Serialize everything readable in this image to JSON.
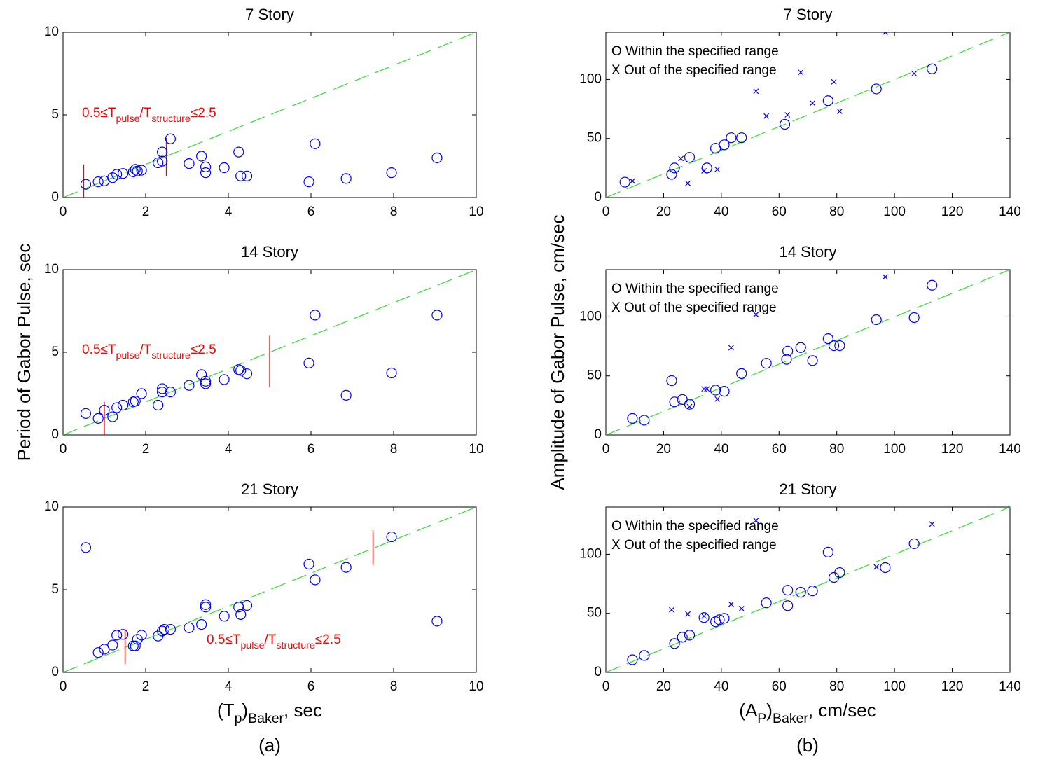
{
  "labels": {
    "ylabel_a": "Period of Gabor Pulse, sec",
    "ylabel_b": "Amplitude of Gabor Pulse, cm/sec",
    "xlabel_a": [
      "(T",
      "p",
      ")",
      "Baker",
      ", sec"
    ],
    "xlabel_b": [
      "(A",
      "P",
      ")",
      "Baker",
      ", cm/sec"
    ],
    "panel_a": "(a)",
    "panel_b": "(b)"
  },
  "chart_data": [
    {
      "type": "scatter",
      "title": "7 Story",
      "xlim": [
        0,
        10
      ],
      "ylim": [
        0,
        10
      ],
      "xticks": [
        0,
        2,
        4,
        6,
        8,
        10
      ],
      "yticks": [
        0,
        5,
        10
      ],
      "grid": false,
      "annotation": [
        "0.5≤T",
        "pulse",
        "/T",
        "structure",
        "≤2.5"
      ],
      "annotation_color": "#ff0000",
      "range_marks": [
        {
          "x": 0.5,
          "y": [
            0,
            2
          ]
        },
        {
          "x": 2.5,
          "y": [
            1.3,
            3.6
          ]
        }
      ],
      "reference_line": {
        "x": [
          0,
          10
        ],
        "values": [
          0,
          10
        ],
        "color": "#33dd33"
      },
      "series": [
        {
          "marker": "o",
          "color": "#0000ff",
          "x": [
            0.55,
            0.85,
            1.0,
            1.2,
            1.3,
            1.45,
            1.7,
            1.75,
            1.8,
            1.9,
            2.3,
            2.4,
            2.4,
            2.6,
            3.05,
            3.35,
            3.45,
            3.45,
            3.9,
            4.25,
            4.3,
            4.45,
            5.95,
            6.1,
            6.85,
            7.95,
            9.05
          ],
          "values": [
            0.8,
            0.95,
            1.0,
            1.2,
            1.4,
            1.45,
            1.55,
            1.7,
            1.6,
            1.65,
            2.1,
            2.2,
            2.75,
            3.55,
            2.05,
            2.5,
            1.85,
            1.5,
            1.8,
            2.75,
            1.3,
            1.3,
            0.95,
            3.25,
            1.15,
            1.5,
            2.4
          ]
        }
      ]
    },
    {
      "type": "scatter",
      "title": "14 Story",
      "xlim": [
        0,
        10
      ],
      "ylim": [
        0,
        10
      ],
      "xticks": [
        0,
        2,
        4,
        6,
        8,
        10
      ],
      "yticks": [
        0,
        5,
        10
      ],
      "grid": false,
      "annotation": [
        "0.5≤T",
        "pulse",
        "/T",
        "structure",
        "≤2.5"
      ],
      "annotation_color": "#ff0000",
      "range_marks": [
        {
          "x": 1,
          "y": [
            0,
            2
          ]
        },
        {
          "x": 5,
          "y": [
            2.9,
            6
          ]
        }
      ],
      "reference_line": {
        "x": [
          0,
          10
        ],
        "values": [
          0,
          10
        ],
        "color": "#33dd33"
      },
      "series": [
        {
          "marker": "o",
          "color": "#0000ff",
          "x": [
            0.55,
            0.85,
            1.0,
            1.2,
            1.3,
            1.45,
            1.7,
            1.75,
            1.9,
            2.3,
            2.4,
            2.4,
            2.6,
            3.05,
            3.35,
            3.45,
            3.45,
            3.9,
            4.25,
            4.3,
            4.45,
            5.95,
            6.1,
            6.85,
            7.95,
            9.05
          ],
          "values": [
            1.3,
            1.0,
            1.5,
            1.1,
            1.65,
            1.8,
            2.0,
            2.05,
            2.5,
            1.8,
            2.6,
            2.8,
            2.6,
            3.0,
            3.65,
            3.1,
            3.25,
            3.35,
            3.95,
            3.9,
            3.7,
            4.35,
            7.25,
            2.4,
            3.75,
            7.25
          ]
        }
      ]
    },
    {
      "type": "scatter",
      "title": "21 Story",
      "xlim": [
        0,
        10
      ],
      "ylim": [
        0,
        10
      ],
      "xticks": [
        0,
        2,
        4,
        6,
        8,
        10
      ],
      "yticks": [
        0,
        5,
        10
      ],
      "grid": false,
      "annotation": [
        "0.5≤T",
        "pulse",
        "/T",
        "structure",
        "≤2.5"
      ],
      "annotation_color": "#ff0000",
      "range_marks": [
        {
          "x": 1.5,
          "y": [
            0.5,
            2.6
          ]
        },
        {
          "x": 7.5,
          "y": [
            6.5,
            8.6
          ]
        }
      ],
      "reference_line": {
        "x": [
          0,
          10
        ],
        "values": [
          0,
          10
        ],
        "color": "#33dd33"
      },
      "series": [
        {
          "marker": "o",
          "color": "#0000ff",
          "x": [
            0.55,
            0.85,
            1.0,
            1.2,
            1.3,
            1.45,
            1.7,
            1.75,
            1.8,
            1.9,
            2.3,
            2.4,
            2.45,
            2.6,
            3.05,
            3.35,
            3.45,
            3.45,
            3.9,
            4.25,
            4.3,
            4.45,
            5.95,
            6.1,
            6.85,
            7.95,
            9.05
          ],
          "values": [
            7.55,
            1.2,
            1.4,
            1.65,
            2.25,
            2.3,
            1.6,
            1.6,
            2.0,
            2.25,
            2.2,
            2.5,
            2.6,
            2.6,
            2.7,
            2.9,
            3.95,
            4.1,
            3.4,
            3.95,
            3.5,
            4.05,
            6.55,
            5.6,
            6.35,
            8.2,
            3.1
          ]
        }
      ]
    },
    {
      "type": "scatter",
      "title": "7 Story",
      "xlim": [
        0,
        140
      ],
      "ylim": [
        0,
        140
      ],
      "xticks": [
        0,
        20,
        40,
        60,
        80,
        100,
        120,
        140
      ],
      "yticks": [
        0,
        50,
        100
      ],
      "grid": false,
      "legend": "upper left",
      "reference_line": {
        "x": [
          0,
          140
        ],
        "values": [
          0,
          140
        ],
        "color": "#33dd33"
      },
      "series": [
        {
          "name": "O Within the specified range",
          "marker": "o",
          "color": "#0000ff",
          "x": [
            6.6,
            22.8,
            23.8,
            29,
            35,
            38,
            41,
            43.4,
            47,
            62,
            77,
            93.7,
            113
          ],
          "values": [
            13,
            19.6,
            25,
            34,
            25,
            41.7,
            44.6,
            50.6,
            50.6,
            62,
            82,
            92,
            109
          ]
        },
        {
          "name": "X Out of the specified range",
          "marker": "x",
          "color": "#0000ff",
          "x": [
            9.2,
            26,
            28.4,
            34,
            38.6,
            52,
            55.6,
            62.9,
            67.5,
            71.6,
            79,
            81,
            96.8,
            106.8
          ],
          "values": [
            14,
            33,
            12,
            22.6,
            23.8,
            90,
            69,
            70,
            106,
            80,
            98,
            73,
            140,
            105
          ]
        }
      ]
    },
    {
      "type": "scatter",
      "title": "14 Story",
      "xlim": [
        0,
        140
      ],
      "ylim": [
        0,
        140
      ],
      "xticks": [
        0,
        20,
        40,
        60,
        80,
        100,
        120,
        140
      ],
      "yticks": [
        0,
        50,
        100
      ],
      "grid": false,
      "legend": "upper left",
      "reference_line": {
        "x": [
          0,
          140
        ],
        "values": [
          0,
          140
        ],
        "color": "#33dd33"
      },
      "series": [
        {
          "name": "O Within the specified range",
          "marker": "o",
          "color": "#0000ff",
          "x": [
            9.2,
            13.3,
            22.8,
            23.8,
            26.5,
            29,
            38,
            41,
            47,
            55.6,
            62.6,
            63,
            67.5,
            71.6,
            77,
            79,
            81,
            93.7,
            106.8,
            113
          ],
          "values": [
            14,
            12.5,
            46,
            28,
            30,
            26,
            38,
            37,
            52,
            60.7,
            64,
            71,
            74,
            63,
            81.5,
            75.6,
            75.6,
            97.6,
            99.4,
            126.8
          ]
        },
        {
          "name": "X Out of the specified range",
          "marker": "x",
          "color": "#0000ff",
          "x": [
            29,
            34,
            35,
            38.6,
            43.4,
            52,
            96.8
          ],
          "values": [
            24,
            39,
            39,
            30.4,
            73.8,
            102,
            133.9
          ]
        }
      ]
    },
    {
      "type": "scatter",
      "title": "21 Story",
      "xlim": [
        0,
        140
      ],
      "ylim": [
        0,
        140
      ],
      "xticks": [
        0,
        20,
        40,
        60,
        80,
        100,
        120,
        140
      ],
      "yticks": [
        0,
        50,
        100
      ],
      "grid": false,
      "legend": "upper left",
      "reference_line": {
        "x": [
          0,
          140
        ],
        "values": [
          0,
          140
        ],
        "color": "#33dd33"
      },
      "series": [
        {
          "name": "O Within the specified range",
          "marker": "o",
          "color": "#0000ff",
          "x": [
            9.2,
            13.3,
            23.8,
            26.5,
            29,
            34,
            38,
            39.3,
            41,
            55.6,
            63,
            63,
            67.5,
            71.6,
            77,
            79,
            81,
            96.8,
            106.8
          ],
          "values": [
            10.7,
            14.3,
            24.4,
            29.8,
            31.5,
            46.4,
            42.9,
            44.6,
            45.8,
            58.9,
            69.6,
            56.5,
            67.9,
            69,
            101.8,
            80.4,
            84.5,
            88.7,
            108.9
          ]
        },
        {
          "name": "X Out of the specified range",
          "marker": "x",
          "color": "#0000ff",
          "x": [
            22.8,
            28.4,
            34,
            43.4,
            47,
            52,
            93.7,
            113
          ],
          "values": [
            53,
            49.4,
            47.6,
            57.7,
            54,
            128.6,
            89.3,
            125.6
          ]
        }
      ]
    }
  ]
}
